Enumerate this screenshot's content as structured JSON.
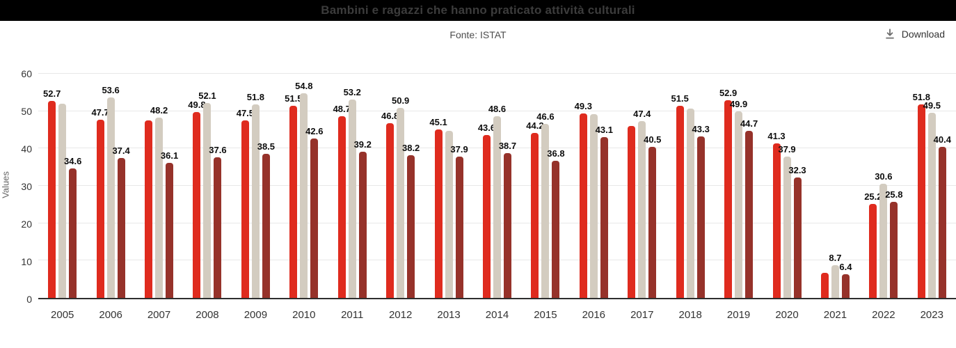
{
  "header": {
    "title": "Bambini e ragazzi che hanno praticato attività culturali"
  },
  "toolbar": {
    "source": "Fonte: ISTAT",
    "download_label": "Download"
  },
  "chart_data": {
    "type": "bar",
    "title": "Bambini e ragazzi che hanno praticato attività culturali",
    "subtitle": "Fonte: ISTAT",
    "xlabel": "",
    "ylabel": "Values",
    "ylim": [
      0,
      60
    ],
    "yticks": [
      0,
      10,
      20,
      30,
      40,
      50,
      60
    ],
    "grid": true,
    "legend_position": "none",
    "categories": [
      "2005",
      "2006",
      "2007",
      "2008",
      "2009",
      "2010",
      "2011",
      "2012",
      "2013",
      "2014",
      "2015",
      "2016",
      "2017",
      "2018",
      "2019",
      "2020",
      "2021",
      "2022",
      "2023"
    ],
    "series": [
      {
        "name": "series-1-red",
        "color": "#df2b1e",
        "values": [
          52.7,
          47.7,
          47.6,
          49.8,
          47.5,
          51.5,
          48.7,
          46.8,
          45.1,
          43.6,
          44.2,
          49.3,
          46.1,
          51.5,
          52.9,
          41.3,
          6.7,
          25.2,
          51.8
        ],
        "value_labels": [
          "52.7",
          "47.7",
          "",
          "49.8",
          "47.5",
          "51.5",
          "48.7",
          "46.8",
          "45.1",
          "43.6",
          "44.2",
          "49.3",
          "",
          "51.5",
          "52.9",
          "41.3",
          "",
          "25.2",
          "51.8"
        ]
      },
      {
        "name": "series-2-beige",
        "color": "#d3ccc0",
        "values": [
          52.0,
          53.6,
          48.2,
          52.1,
          51.8,
          54.8,
          53.2,
          50.9,
          44.8,
          48.6,
          46.6,
          49.2,
          47.4,
          50.7,
          49.9,
          37.9,
          8.7,
          30.6,
          49.5
        ],
        "value_labels": [
          "",
          "53.6",
          "48.2",
          "52.1",
          "51.8",
          "54.8",
          "53.2",
          "50.9",
          "",
          "48.6",
          "46.6",
          "",
          "47.4",
          "",
          "49.9",
          "37.9",
          "8.7",
          "30.6",
          "49.5"
        ]
      },
      {
        "name": "series-3-brown",
        "color": "#96322a",
        "values": [
          34.6,
          37.4,
          36.1,
          37.6,
          38.5,
          42.6,
          39.2,
          38.2,
          37.9,
          38.7,
          36.8,
          43.1,
          40.5,
          43.3,
          44.7,
          32.3,
          6.4,
          25.8,
          40.4
        ],
        "value_labels": [
          "34.6",
          "37.4",
          "36.1",
          "37.6",
          "38.5",
          "42.6",
          "39.2",
          "38.2",
          "37.9",
          "38.7",
          "36.8",
          "43.1",
          "40.5",
          "43.3",
          "44.7",
          "32.3",
          "6.4",
          "25.8",
          "40.4"
        ]
      }
    ]
  },
  "colors": {
    "titlebar_bg": "#000000",
    "title_text": "#3c3c3c",
    "gridline": "#e8e8e8",
    "axis_line": "#2e2e2e"
  }
}
